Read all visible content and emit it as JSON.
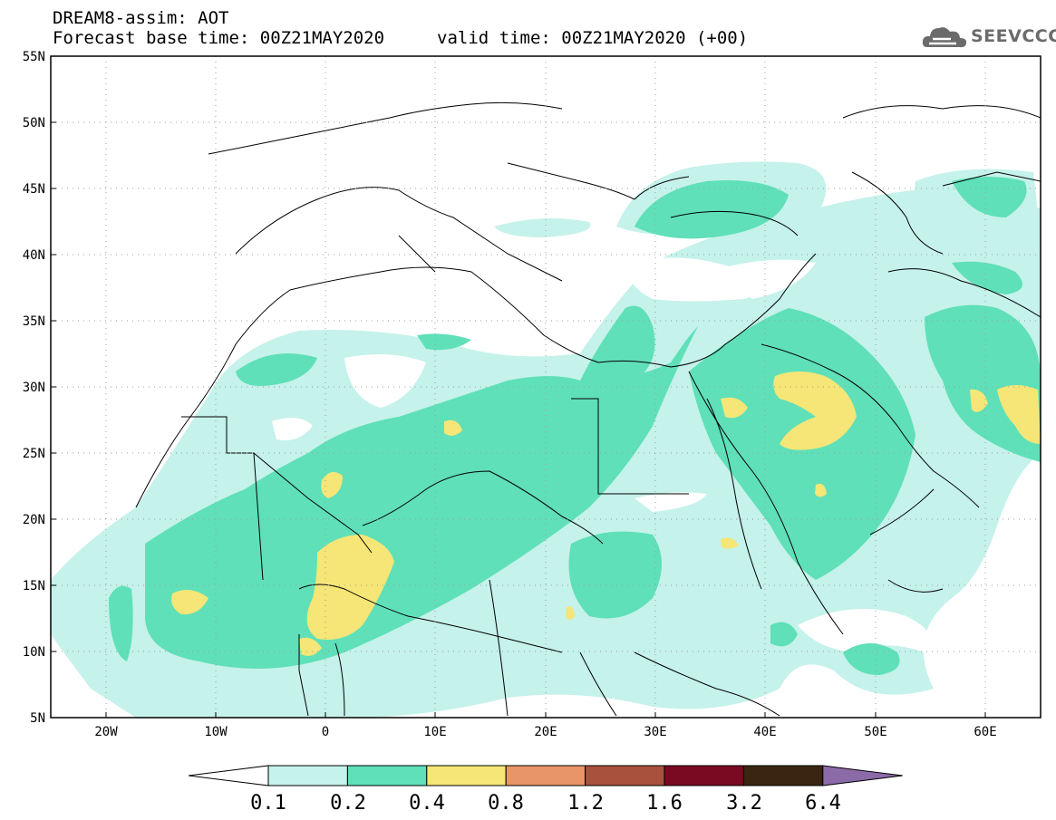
{
  "header": {
    "title_line1": "DREAM8-assim: AOT",
    "title_line2": "Forecast base time: 00Z21MAY2020",
    "valid_time": "valid time: 00Z21MAY2020 (+00)"
  },
  "logo": {
    "text": "SEEVCCC",
    "icon": "cloud-icon"
  },
  "map": {
    "lat_ticks": [
      "55N",
      "50N",
      "45N",
      "40N",
      "35N",
      "30N",
      "25N",
      "20N",
      "15N",
      "10N",
      "5N"
    ],
    "lon_ticks": [
      "20W",
      "10W",
      "0",
      "10E",
      "20E",
      "30E",
      "40E",
      "50E",
      "60E"
    ],
    "lat_range": [
      5,
      55
    ],
    "lon_range": [
      -25,
      65
    ],
    "grid": true
  },
  "colorbar": {
    "labels": [
      "0.1",
      "0.2",
      "0.4",
      "0.8",
      "1.2",
      "1.6",
      "3.2",
      "6.4"
    ],
    "colors": [
      "#ffffff",
      "#c5f2ea",
      "#5fe0b8",
      "#f5e677",
      "#e8956a",
      "#a8513c",
      "#7a0a22",
      "#3a2412",
      "#8c6aa8"
    ]
  },
  "colors": {
    "low": "#c5f2ea",
    "mid": "#5fe0b8",
    "high": "#f5e677",
    "border": "#000000"
  }
}
